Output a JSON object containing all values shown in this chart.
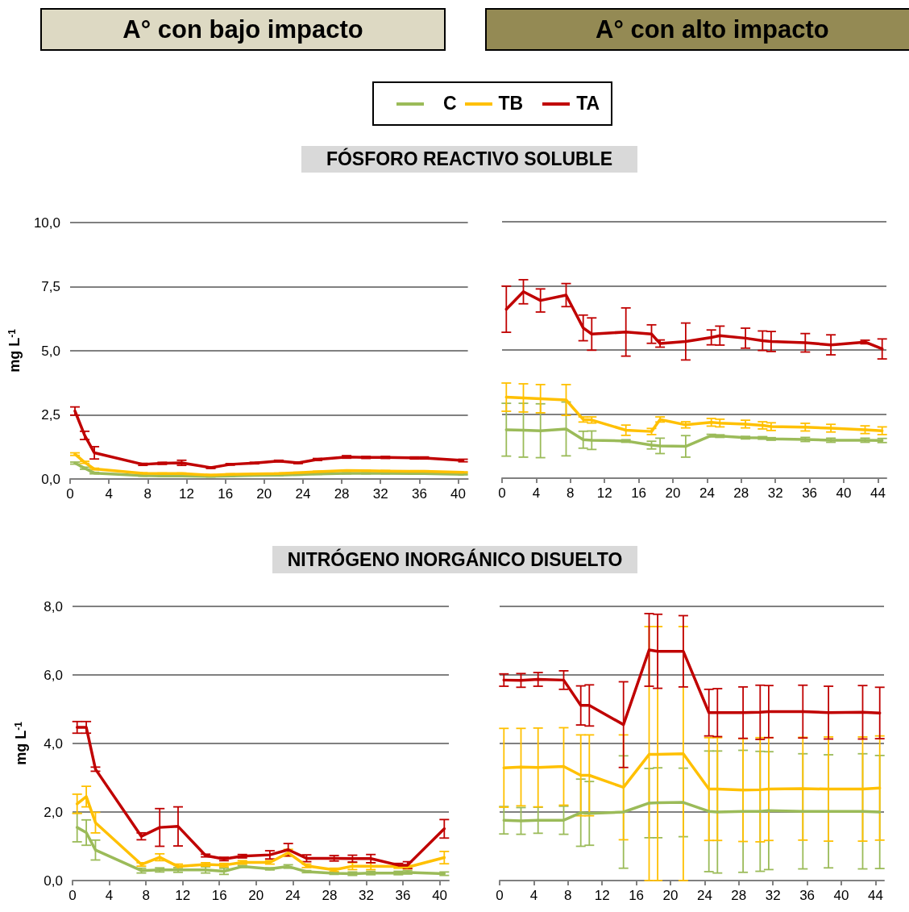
{
  "chart_data": [
    {
      "type": "line",
      "title": "A° con bajo impacto",
      "subtitle": "FÓSFORO REACTIVO SOLUBLE",
      "ylabel": "mg L$^{-1}$",
      "legend": "top",
      "grid": "y",
      "x": [
        0.5,
        1.5,
        2.5,
        7.5,
        9.5,
        11.5,
        14.5,
        16.5,
        19,
        21.5,
        23.5,
        25.5,
        28.5,
        30.5,
        32.5,
        35.5,
        36.5,
        40.5
      ],
      "xlim": [
        0,
        41
      ],
      "xticks": [
        0,
        4,
        8,
        12,
        16,
        20,
        24,
        28,
        32,
        36,
        40
      ],
      "ylim": [
        0,
        10
      ],
      "yticks": [
        {
          "value": 0,
          "label": "0,0"
        },
        {
          "value": 2.5,
          "label": "2,5"
        },
        {
          "value": 5,
          "label": "5,0"
        },
        {
          "value": 7.5,
          "label": "7,5"
        },
        {
          "value": 10,
          "label": "10,0"
        }
      ],
      "series": [
        {
          "name": "C",
          "color": "#9bbb59",
          "values": [
            0.62,
            0.42,
            0.23,
            0.13,
            0.12,
            0.12,
            0.1,
            0.12,
            0.14,
            0.15,
            0.17,
            0.2,
            0.22,
            0.22,
            0.22,
            0.21,
            0.21,
            0.18
          ],
          "errors": [
            0.04,
            0.04,
            0.03,
            0.02,
            0.02,
            0.02,
            0.02,
            0.02,
            0.02,
            0.02,
            0.02,
            0.02,
            0.02,
            0.02,
            0.02,
            0.02,
            0.02,
            0.02
          ]
        },
        {
          "name": "TB",
          "color": "#ffc000",
          "values": [
            0.97,
            0.65,
            0.39,
            0.22,
            0.21,
            0.21,
            0.15,
            0.18,
            0.2,
            0.21,
            0.24,
            0.28,
            0.33,
            0.32,
            0.31,
            0.3,
            0.3,
            0.26
          ],
          "errors": [
            0.05,
            0.04,
            0.03,
            0.02,
            0.02,
            0.02,
            0.02,
            0.02,
            0.02,
            0.02,
            0.02,
            0.02,
            0.02,
            0.02,
            0.02,
            0.02,
            0.02,
            0.02
          ]
        },
        {
          "name": "TA",
          "color": "#c00000",
          "values": [
            2.65,
            1.7,
            1.02,
            0.57,
            0.61,
            0.63,
            0.44,
            0.57,
            0.62,
            0.7,
            0.63,
            0.76,
            0.86,
            0.84,
            0.84,
            0.82,
            0.82,
            0.72
          ],
          "errors": [
            0.16,
            0.16,
            0.24,
            0.04,
            0.04,
            0.1,
            0.03,
            0.03,
            0.03,
            0.03,
            0.03,
            0.04,
            0.05,
            0.04,
            0.04,
            0.04,
            0.04,
            0.05
          ]
        }
      ]
    },
    {
      "type": "line",
      "title": "A° con alto impacto",
      "grid": "y",
      "tick_labels": "x",
      "x": [
        0.5,
        2.5,
        4.5,
        7.5,
        9.5,
        10.5,
        14.5,
        17.5,
        18.5,
        21.5,
        24.5,
        25.5,
        28.5,
        30.5,
        31.5,
        35.5,
        38.5,
        42.5,
        44.5
      ],
      "xlim": [
        0,
        45
      ],
      "xticks": [
        0,
        4,
        8,
        12,
        16,
        20,
        24,
        28,
        32,
        36,
        40,
        44
      ],
      "ylim": [
        0,
        10
      ],
      "yticks": [
        0,
        2.5,
        5,
        7.5,
        10
      ],
      "series": [
        {
          "color": "#9bbb59",
          "values": [
            1.89,
            1.87,
            1.85,
            1.92,
            1.5,
            1.48,
            1.45,
            1.29,
            1.26,
            1.24,
            1.66,
            1.64,
            1.58,
            1.57,
            1.53,
            1.51,
            1.48,
            1.48,
            1.47
          ],
          "errors": [
            1.03,
            1.05,
            1.05,
            1.05,
            0.33,
            0.36,
            0.05,
            0.15,
            0.3,
            0.42,
            0.05,
            0.05,
            0.05,
            0.05,
            0.05,
            0.08,
            0.08,
            0.08,
            0.08
          ]
        },
        {
          "color": "#ffc000",
          "values": [
            3.16,
            3.13,
            3.1,
            3.05,
            2.29,
            2.27,
            1.87,
            1.82,
            2.29,
            2.08,
            2.18,
            2.15,
            2.11,
            2.06,
            2.01,
            1.99,
            1.95,
            1.89,
            1.85
          ],
          "errors": [
            0.55,
            0.55,
            0.55,
            0.6,
            0.1,
            0.12,
            0.2,
            0.12,
            0.1,
            0.12,
            0.15,
            0.15,
            0.15,
            0.14,
            0.15,
            0.15,
            0.15,
            0.15,
            0.15
          ]
        },
        {
          "color": "#c00000",
          "values": [
            6.59,
            7.27,
            6.93,
            7.14,
            5.86,
            5.62,
            5.7,
            5.62,
            5.25,
            5.33,
            5.49,
            5.56,
            5.46,
            5.36,
            5.33,
            5.28,
            5.2,
            5.31,
            5.04
          ],
          "errors": [
            0.9,
            0.47,
            0.45,
            0.45,
            0.5,
            0.63,
            0.94,
            0.36,
            0.14,
            0.72,
            0.29,
            0.37,
            0.39,
            0.38,
            0.39,
            0.36,
            0.39,
            0.07,
            0.39
          ]
        }
      ]
    },
    {
      "type": "line",
      "subtitle": "NITRÓGENO INORGÁNICO DISUELTO",
      "ylabel": "mg L$^{-1}$",
      "grid": "y",
      "x": [
        0.5,
        1.5,
        2.5,
        7.5,
        9.5,
        11.5,
        14.5,
        16.5,
        18.5,
        21.5,
        23.5,
        25.5,
        28.5,
        30.5,
        32.5,
        35.5,
        36.5,
        40.5
      ],
      "xlim": [
        0,
        41
      ],
      "xticks": [
        0,
        4,
        8,
        12,
        16,
        20,
        24,
        28,
        32,
        36,
        40
      ],
      "ylim": [
        0,
        8
      ],
      "yticks": [
        {
          "value": 0,
          "label": "0,0"
        },
        {
          "value": 2,
          "label": "2,0"
        },
        {
          "value": 4,
          "label": "4,0"
        },
        {
          "value": 6,
          "label": "6,0"
        },
        {
          "value": 8,
          "label": "8,0"
        }
      ],
      "series": [
        {
          "color": "#9bbb59",
          "values": [
            1.55,
            1.4,
            0.89,
            0.29,
            0.31,
            0.31,
            0.31,
            0.27,
            0.41,
            0.34,
            0.41,
            0.26,
            0.21,
            0.2,
            0.22,
            0.22,
            0.24,
            0.2
          ],
          "errors": [
            0.42,
            0.37,
            0.29,
            0.07,
            0.06,
            0.07,
            0.09,
            0.09,
            0.03,
            0.03,
            0.05,
            0.03,
            0.03,
            0.05,
            0.05,
            0.05,
            0.05,
            0.05
          ]
        },
        {
          "color": "#ffc000",
          "values": [
            2.24,
            2.45,
            1.69,
            0.47,
            0.68,
            0.41,
            0.47,
            0.45,
            0.53,
            0.53,
            0.81,
            0.43,
            0.31,
            0.42,
            0.42,
            0.41,
            0.39,
            0.67
          ],
          "errors": [
            0.28,
            0.3,
            0.3,
            0.05,
            0.1,
            0.07,
            0.05,
            0.05,
            0.05,
            0.05,
            0.1,
            0.05,
            0.05,
            0.1,
            0.1,
            0.05,
            0.05,
            0.18
          ]
        },
        {
          "color": "#c00000",
          "values": [
            4.47,
            4.47,
            3.25,
            1.29,
            1.55,
            1.58,
            0.73,
            0.63,
            0.71,
            0.75,
            0.9,
            0.65,
            0.65,
            0.64,
            0.64,
            0.45,
            0.45,
            1.51
          ],
          "errors": [
            0.17,
            0.17,
            0.06,
            0.1,
            0.55,
            0.57,
            0.04,
            0.05,
            0.05,
            0.12,
            0.18,
            0.1,
            0.08,
            0.1,
            0.12,
            0.05,
            0.1,
            0.27
          ]
        }
      ]
    },
    {
      "type": "line",
      "grid": "y",
      "tick_labels": "x",
      "x": [
        0.5,
        2.5,
        4.5,
        7.5,
        9.5,
        10.5,
        14.5,
        17.5,
        18.5,
        21.5,
        24.5,
        25.5,
        28.5,
        30.5,
        31.5,
        35.5,
        38.5,
        42.5,
        44.5
      ],
      "xlim": [
        0,
        45
      ],
      "xticks": [
        0,
        4,
        8,
        12,
        16,
        20,
        24,
        28,
        32,
        36,
        40,
        44
      ],
      "ylim": [
        0,
        8
      ],
      "yticks": [
        0,
        2,
        4,
        6,
        8
      ],
      "series": [
        {
          "color": "#9bbb59",
          "values": [
            1.76,
            1.74,
            1.76,
            1.76,
            1.98,
            1.96,
            2.0,
            2.26,
            2.27,
            2.28,
            2.02,
            2.0,
            2.02,
            2.02,
            2.04,
            2.02,
            2.02,
            2.02,
            2.0
          ],
          "errors": [
            0.4,
            0.39,
            0.38,
            0.41,
            0.98,
            0.93,
            1.64,
            1.01,
            1.02,
            1.0,
            1.76,
            1.78,
            1.78,
            1.75,
            1.72,
            1.68,
            1.65,
            1.68,
            1.65
          ]
        },
        {
          "color": "#ffc000",
          "values": [
            3.29,
            3.31,
            3.3,
            3.33,
            3.07,
            3.07,
            2.72,
            3.68,
            3.68,
            3.7,
            2.67,
            2.67,
            2.64,
            2.65,
            2.67,
            2.68,
            2.67,
            2.67,
            2.7
          ],
          "errors": [
            1.15,
            1.13,
            1.15,
            1.13,
            1.18,
            1.18,
            1.53,
            [
              0,
              7.41
            ],
            [
              0,
              7.41
            ],
            [
              0,
              7.41
            ],
            1.5,
            1.5,
            1.5,
            1.52,
            1.5,
            1.5,
            1.52,
            1.52,
            1.52
          ]
        },
        {
          "color": "#c00000",
          "values": [
            5.85,
            5.84,
            5.87,
            5.85,
            5.11,
            5.11,
            4.55,
            6.73,
            6.69,
            6.69,
            4.9,
            4.9,
            4.9,
            4.91,
            4.93,
            4.93,
            4.9,
            4.91,
            4.89
          ],
          "errors": [
            0.18,
            0.2,
            0.2,
            0.27,
            0.57,
            0.6,
            1.25,
            1.06,
            1.08,
            1.04,
            0.68,
            0.7,
            0.75,
            0.79,
            0.76,
            0.77,
            0.77,
            0.78,
            0.75
          ]
        }
      ]
    }
  ]
}
